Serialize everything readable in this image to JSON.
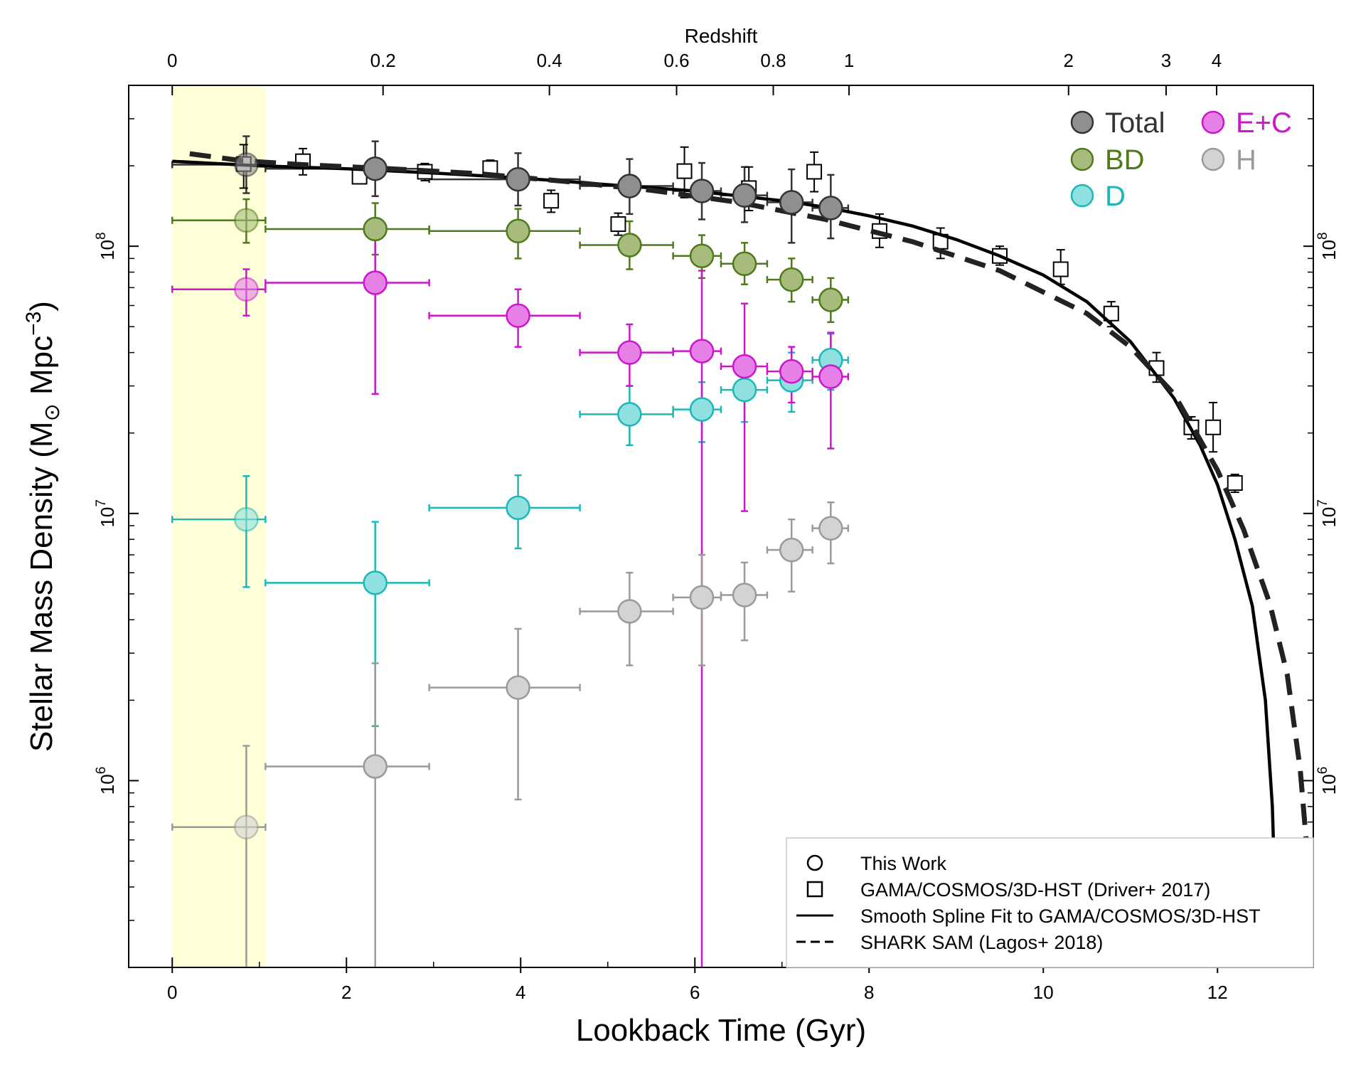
{
  "chart_data": {
    "type": "scatter",
    "xlabel": "Lookback Time (Gyr)",
    "ylabel_main": "Stellar Mass Density (M",
    "ylabel_sub": "⊙",
    "ylabel_units": " Mpc",
    "ylabel_exp": "−3",
    "ylabel_close": ")",
    "top_axis_title": "Redshift",
    "xlim": [
      -0.5,
      13.1
    ],
    "ylim": [
      200000,
      400000000
    ],
    "y_scale": "log",
    "x_ticks": [
      {
        "value": 0,
        "label": "0"
      },
      {
        "value": 2,
        "label": "2"
      },
      {
        "value": 4,
        "label": "4"
      },
      {
        "value": 6,
        "label": "6"
      },
      {
        "value": 8,
        "label": "8"
      },
      {
        "value": 10,
        "label": "10"
      },
      {
        "value": 12,
        "label": "12"
      }
    ],
    "y_ticks": [
      {
        "value": 1000000,
        "base": "10",
        "exp": "6"
      },
      {
        "value": 10000000,
        "base": "10",
        "exp": "7"
      },
      {
        "value": 100000000,
        "base": "10",
        "exp": "8"
      }
    ],
    "top_ticks": [
      {
        "value": 0,
        "label": "0"
      },
      {
        "value": 2.42,
        "label": "0.2"
      },
      {
        "value": 4.33,
        "label": "0.4"
      },
      {
        "value": 5.79,
        "label": "0.6"
      },
      {
        "value": 6.9,
        "label": "0.8"
      },
      {
        "value": 7.77,
        "label": "1"
      },
      {
        "value": 10.29,
        "label": "2"
      },
      {
        "value": 11.41,
        "label": "3"
      },
      {
        "value": 11.99,
        "label": "4"
      }
    ],
    "highlight_region": {
      "x_start": 0,
      "x_end": 1.07,
      "color": "#ffffd8"
    },
    "series": [
      {
        "name": "Total",
        "color": "#333333",
        "fill": "#8f8f8f",
        "points": [
          {
            "x": 0.85,
            "y": 202000000,
            "xlo": 0,
            "xhi": 1.07,
            "ylo": 158000000,
            "yhi": 258000000
          },
          {
            "x": 2.33,
            "y": 195000000,
            "xlo": 1.07,
            "xhi": 2.95,
            "ylo": 154000000,
            "yhi": 247000000
          },
          {
            "x": 3.97,
            "y": 178000000,
            "xlo": 2.95,
            "xhi": 4.68,
            "ylo": 142000000,
            "yhi": 223000000
          },
          {
            "x": 5.25,
            "y": 168000000,
            "xlo": 4.68,
            "xhi": 5.75,
            "ylo": 132000000,
            "yhi": 212000000
          },
          {
            "x": 6.08,
            "y": 161000000,
            "xlo": 5.75,
            "xhi": 6.3,
            "ylo": 126000000,
            "yhi": 205000000
          },
          {
            "x": 6.57,
            "y": 155000000,
            "xlo": 6.3,
            "xhi": 6.83,
            "ylo": 123000000,
            "yhi": 198000000
          },
          {
            "x": 7.11,
            "y": 146000000,
            "xlo": 6.83,
            "xhi": 7.35,
            "ylo": 103000000,
            "yhi": 194000000
          },
          {
            "x": 7.56,
            "y": 139000000,
            "xlo": 7.35,
            "xhi": 7.76,
            "ylo": 107000000,
            "yhi": 185000000
          }
        ]
      },
      {
        "name": "BD",
        "color": "#4f7a1c",
        "fill": "#a6bb7c",
        "points": [
          {
            "x": 0.85,
            "y": 125000000,
            "xlo": 0,
            "xhi": 1.07,
            "ylo": 103000000,
            "yhi": 150000000
          },
          {
            "x": 2.33,
            "y": 116000000,
            "xlo": 1.07,
            "xhi": 2.95,
            "ylo": 93000000,
            "yhi": 145000000
          },
          {
            "x": 3.97,
            "y": 114000000,
            "xlo": 2.95,
            "xhi": 4.68,
            "ylo": 90000000,
            "yhi": 138000000
          },
          {
            "x": 5.25,
            "y": 101000000,
            "xlo": 4.68,
            "xhi": 5.75,
            "ylo": 82000000,
            "yhi": 124000000
          },
          {
            "x": 6.08,
            "y": 92000000,
            "xlo": 5.75,
            "xhi": 6.3,
            "ylo": 76000000,
            "yhi": 110000000
          },
          {
            "x": 6.57,
            "y": 86000000,
            "xlo": 6.3,
            "xhi": 6.83,
            "ylo": 72000000,
            "yhi": 103000000
          },
          {
            "x": 7.11,
            "y": 75000000,
            "xlo": 6.83,
            "xhi": 7.35,
            "ylo": 62000000,
            "yhi": 90000000
          },
          {
            "x": 7.56,
            "y": 63000000,
            "xlo": 7.35,
            "xhi": 7.76,
            "ylo": 52000000,
            "yhi": 76000000
          }
        ]
      },
      {
        "name": "D",
        "color": "#1cb8b8",
        "fill": "#8fe0de",
        "points": [
          {
            "x": 0.85,
            "y": 9500000,
            "xlo": 0,
            "xhi": 1.07,
            "ylo": 5300000,
            "yhi": 13800000
          },
          {
            "x": 2.33,
            "y": 5500000,
            "xlo": 1.07,
            "xhi": 2.95,
            "ylo": 1600000,
            "yhi": 9300000
          },
          {
            "x": 3.97,
            "y": 10500000,
            "xlo": 2.95,
            "xhi": 4.68,
            "ylo": 7400000,
            "yhi": 13900000
          },
          {
            "x": 5.25,
            "y": 23500000,
            "xlo": 4.68,
            "xhi": 5.75,
            "ylo": 18000000,
            "yhi": 30000000
          },
          {
            "x": 6.08,
            "y": 24500000,
            "xlo": 5.75,
            "xhi": 6.3,
            "ylo": 18500000,
            "yhi": 31000000
          },
          {
            "x": 6.57,
            "y": 29000000,
            "xlo": 6.3,
            "xhi": 6.83,
            "ylo": 22000000,
            "yhi": 37000000
          },
          {
            "x": 7.11,
            "y": 31500000,
            "xlo": 6.83,
            "xhi": 7.35,
            "ylo": 24000000,
            "yhi": 40000000
          },
          {
            "x": 7.56,
            "y": 37500000,
            "xlo": 7.35,
            "xhi": 7.76,
            "ylo": 29000000,
            "yhi": 47000000
          }
        ]
      },
      {
        "name": "E+C",
        "color": "#cc16cc",
        "fill": "#e680e6",
        "points": [
          {
            "x": 0.85,
            "y": 69000000,
            "xlo": 0,
            "xhi": 1.07,
            "ylo": 55000000,
            "yhi": 82000000
          },
          {
            "x": 2.33,
            "y": 73000000,
            "xlo": 1.07,
            "xhi": 2.95,
            "ylo": 28000000,
            "yhi": 118000000
          },
          {
            "x": 3.97,
            "y": 55000000,
            "xlo": 2.95,
            "xhi": 4.68,
            "ylo": 42000000,
            "yhi": 69000000
          },
          {
            "x": 5.25,
            "y": 40000000,
            "xlo": 4.68,
            "xhi": 5.75,
            "ylo": 30000000,
            "yhi": 51000000
          },
          {
            "x": 6.08,
            "y": 40500000,
            "xlo": 5.75,
            "xhi": 6.3,
            "ylo": 200000,
            "yhi": 81000000
          },
          {
            "x": 6.57,
            "y": 35500000,
            "xlo": 6.3,
            "xhi": 6.83,
            "ylo": 10200000,
            "yhi": 61000000
          },
          {
            "x": 7.11,
            "y": 34000000,
            "xlo": 6.83,
            "xhi": 7.35,
            "ylo": 26000000,
            "yhi": 42000000
          },
          {
            "x": 7.56,
            "y": 32500000,
            "xlo": 7.35,
            "xhi": 7.76,
            "ylo": 17500000,
            "yhi": 47500000
          }
        ]
      },
      {
        "name": "H",
        "color": "#9a9a9a",
        "fill": "#d3d3d3",
        "points": [
          {
            "x": 0.85,
            "y": 670000,
            "xlo": 0,
            "xhi": 1.07,
            "ylo": 200000,
            "yhi": 1350000
          },
          {
            "x": 2.33,
            "y": 1130000,
            "xlo": 1.07,
            "xhi": 2.95,
            "ylo": 200000,
            "yhi": 2750000
          },
          {
            "x": 3.97,
            "y": 2230000,
            "xlo": 2.95,
            "xhi": 4.68,
            "ylo": 850000,
            "yhi": 3700000
          },
          {
            "x": 5.25,
            "y": 4300000,
            "xlo": 4.68,
            "xhi": 5.75,
            "ylo": 2700000,
            "yhi": 6000000
          },
          {
            "x": 6.08,
            "y": 4850000,
            "xlo": 5.75,
            "xhi": 6.3,
            "ylo": 2700000,
            "yhi": 7000000
          },
          {
            "x": 6.57,
            "y": 4950000,
            "xlo": 6.3,
            "xhi": 6.83,
            "ylo": 3350000,
            "yhi": 6550000
          },
          {
            "x": 7.11,
            "y": 7300000,
            "xlo": 6.83,
            "xhi": 7.35,
            "ylo": 5100000,
            "yhi": 9500000
          },
          {
            "x": 7.56,
            "y": 8800000,
            "xlo": 7.35,
            "xhi": 7.76,
            "ylo": 6500000,
            "yhi": 11000000
          }
        ]
      },
      {
        "name": "GAMA/COSMOS/3D-HST (Driver+ 2017)",
        "marker": "square",
        "color": "#000000",
        "points": [
          {
            "x": 0.82,
            "y": 203000000,
            "ylo": 165000000,
            "yhi": 240000000
          },
          {
            "x": 1.5,
            "y": 208000000,
            "ylo": 185000000,
            "yhi": 232000000
          },
          {
            "x": 2.15,
            "y": 182000000,
            "ylo": 172000000,
            "yhi": 194000000
          },
          {
            "x": 2.9,
            "y": 190000000,
            "ylo": 176000000,
            "yhi": 204000000
          },
          {
            "x": 3.65,
            "y": 196000000,
            "ylo": 185000000,
            "yhi": 210000000
          },
          {
            "x": 4.35,
            "y": 148000000,
            "ylo": 134000000,
            "yhi": 162000000
          },
          {
            "x": 5.12,
            "y": 121000000,
            "ylo": 110000000,
            "yhi": 133000000
          },
          {
            "x": 5.88,
            "y": 191000000,
            "ylo": 152000000,
            "yhi": 235000000
          },
          {
            "x": 6.62,
            "y": 165000000,
            "ylo": 136000000,
            "yhi": 198000000
          },
          {
            "x": 7.37,
            "y": 190000000,
            "ylo": 160000000,
            "yhi": 225000000
          },
          {
            "x": 8.12,
            "y": 114000000,
            "ylo": 99000000,
            "yhi": 132000000
          },
          {
            "x": 8.82,
            "y": 104000000,
            "ylo": 90000000,
            "yhi": 117000000
          },
          {
            "x": 9.5,
            "y": 92000000,
            "ylo": 85000000,
            "yhi": 100000000
          },
          {
            "x": 10.2,
            "y": 82000000,
            "ylo": 72000000,
            "yhi": 97000000
          },
          {
            "x": 10.78,
            "y": 56000000,
            "ylo": 50000000,
            "yhi": 62000000
          },
          {
            "x": 11.3,
            "y": 35000000,
            "ylo": 31000000,
            "yhi": 40000000
          },
          {
            "x": 11.7,
            "y": 21000000,
            "ylo": 19000000,
            "yhi": 23000000
          },
          {
            "x": 11.95,
            "y": 21000000,
            "ylo": 17000000,
            "yhi": 26000000
          },
          {
            "x": 12.2,
            "y": 13000000,
            "ylo": 12000000,
            "yhi": 14000000
          }
        ]
      },
      {
        "name": "Smooth Spline Fit to GAMA/COSMOS/3D-HST",
        "type": "line",
        "style": "solid",
        "color": "#000000",
        "x": [
          0,
          1,
          2,
          3,
          4,
          5,
          6,
          7,
          7.5,
          8,
          8.5,
          9,
          9.5,
          10,
          10.5,
          11,
          11.5,
          11.8,
          12,
          12.2,
          12.4,
          12.55,
          12.63,
          12.67,
          12.7
        ],
        "y": [
          208000000,
          200000000,
          195000000,
          188000000,
          180000000,
          170000000,
          161000000,
          148000000,
          140000000,
          130000000,
          119000000,
          106000000,
          92000000,
          78000000,
          62000000,
          44000000,
          27000000,
          18000000,
          12800000,
          8000000,
          4500000,
          2000000,
          800000,
          300000,
          200000
        ]
      },
      {
        "name": "SHARK SAM (Lagos+ 2018)",
        "type": "line",
        "style": "dashed",
        "color": "#222222",
        "x": [
          0.2,
          0.8,
          1.5,
          2.5,
          3.5,
          4.5,
          5.5,
          6.5,
          7.5,
          8.5,
          9.5,
          10.5,
          11,
          11.5,
          12,
          12.3,
          12.6,
          12.8,
          12.95,
          13.05,
          13.1
        ],
        "y": [
          222000000,
          209000000,
          202000000,
          195000000,
          187000000,
          175000000,
          162000000,
          146000000,
          126000000,
          104000000,
          81000000,
          56000000,
          42000000,
          28000000,
          14500000,
          8700000,
          4600000,
          2500000,
          1100000,
          450000,
          280000
        ]
      }
    ],
    "legend_top": [
      {
        "label": "Total",
        "color": "#333333",
        "fill": "#8f8f8f"
      },
      {
        "label": "E+C",
        "color": "#cc16cc",
        "fill": "#e680e6"
      },
      {
        "label": "BD",
        "color": "#4f7a1c",
        "fill": "#a6bb7c"
      },
      {
        "label": "H",
        "color": "#9a9a9a",
        "fill": "#d3d3d3"
      },
      {
        "label": "D",
        "color": "#1cb8b8",
        "fill": "#8fe0de"
      }
    ],
    "legend_bottom": [
      {
        "label": "This Work",
        "symbol": "circle"
      },
      {
        "label": "GAMA/COSMOS/3D-HST (Driver+ 2017)",
        "symbol": "square"
      },
      {
        "label": "Smooth Spline Fit to GAMA/COSMOS/3D-HST",
        "symbol": "solid-line"
      },
      {
        "label": "SHARK SAM (Lagos+ 2018)",
        "symbol": "dashed-line"
      }
    ]
  }
}
